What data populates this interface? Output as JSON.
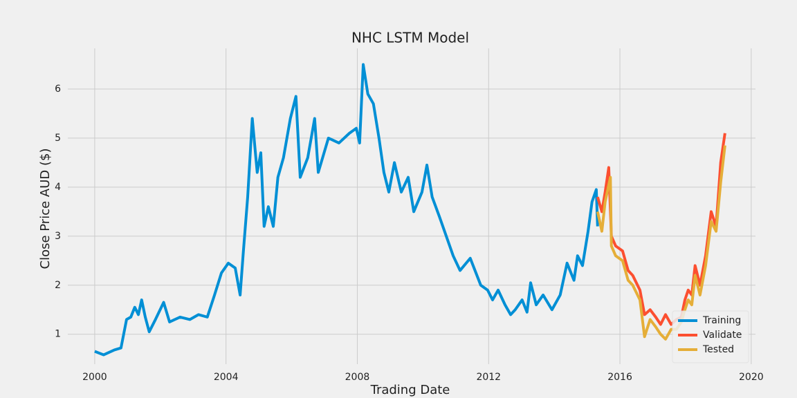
{
  "chart_data": {
    "type": "line",
    "title": "NHC LSTM Model",
    "x_label": "Trading Date",
    "y_label": "Close Price AUD ($)",
    "xlim": [
      1999.18,
      2020.13
    ],
    "ylim": [
      0.39,
      6.83
    ],
    "xticks": [
      2000,
      2004,
      2008,
      2012,
      2016,
      2020
    ],
    "yticks": [
      1,
      2,
      3,
      4,
      5,
      6
    ],
    "grid": true,
    "legend_position": "lower right",
    "series": [
      {
        "name": "Training",
        "color": "#008fd5",
        "x": [
          2000.0,
          2000.27,
          2000.6,
          2000.8,
          2000.97,
          2001.1,
          2001.22,
          2001.33,
          2001.43,
          2001.54,
          2001.66,
          2001.85,
          2002.1,
          2002.28,
          2002.6,
          2002.9,
          2003.16,
          2003.43,
          2003.65,
          2003.86,
          2004.07,
          2004.28,
          2004.43,
          2004.53,
          2004.66,
          2004.8,
          2004.95,
          2005.06,
          2005.16,
          2005.29,
          2005.44,
          2005.58,
          2005.75,
          2005.96,
          2006.13,
          2006.26,
          2006.49,
          2006.7,
          2006.81,
          2007.12,
          2007.44,
          2007.76,
          2007.97,
          2008.07,
          2008.18,
          2008.32,
          2008.49,
          2008.66,
          2008.81,
          2008.96,
          2009.13,
          2009.34,
          2009.55,
          2009.72,
          2009.97,
          2010.12,
          2010.28,
          2010.5,
          2010.71,
          2010.92,
          2011.13,
          2011.44,
          2011.76,
          2011.97,
          2012.12,
          2012.29,
          2012.5,
          2012.67,
          2012.81,
          2013.02,
          2013.17,
          2013.28,
          2013.45,
          2013.66,
          2013.93,
          2014.18,
          2014.39,
          2014.6,
          2014.71,
          2014.86,
          2015.03,
          2015.15,
          2015.28,
          2015.32
        ],
        "values": [
          0.65,
          0.58,
          0.68,
          0.72,
          1.3,
          1.35,
          1.55,
          1.4,
          1.7,
          1.35,
          1.05,
          1.3,
          1.65,
          1.25,
          1.35,
          1.3,
          1.4,
          1.35,
          1.8,
          2.25,
          2.45,
          2.35,
          1.8,
          2.7,
          3.8,
          5.4,
          4.3,
          4.7,
          3.2,
          3.6,
          3.2,
          4.2,
          4.6,
          5.4,
          5.85,
          4.2,
          4.6,
          5.4,
          4.3,
          5.0,
          4.9,
          5.1,
          5.2,
          4.9,
          6.5,
          5.9,
          5.7,
          5.0,
          4.3,
          3.9,
          4.5,
          3.9,
          4.2,
          3.5,
          3.9,
          4.45,
          3.8,
          3.4,
          3.0,
          2.6,
          2.3,
          2.55,
          2.0,
          1.9,
          1.7,
          1.9,
          1.6,
          1.4,
          1.5,
          1.7,
          1.45,
          2.05,
          1.6,
          1.8,
          1.5,
          1.8,
          2.45,
          2.1,
          2.6,
          2.4,
          3.1,
          3.7,
          3.95,
          3.2
        ]
      },
      {
        "name": "Validate",
        "color": "#fc4f30",
        "x": [
          2015.32,
          2015.45,
          2015.55,
          2015.66,
          2015.74,
          2015.87,
          2016.08,
          2016.25,
          2016.39,
          2016.61,
          2016.75,
          2016.92,
          2017.09,
          2017.24,
          2017.39,
          2017.56,
          2017.72,
          2017.87,
          2017.98,
          2018.08,
          2018.19,
          2018.29,
          2018.44,
          2018.61,
          2018.78,
          2018.93,
          2019.07,
          2019.2
        ],
        "values": [
          3.8,
          3.5,
          3.9,
          4.4,
          3.0,
          2.8,
          2.7,
          2.3,
          2.2,
          1.9,
          1.4,
          1.5,
          1.35,
          1.2,
          1.4,
          1.2,
          1.3,
          1.35,
          1.7,
          1.9,
          1.8,
          2.4,
          2.0,
          2.6,
          3.5,
          3.2,
          4.5,
          5.1
        ]
      },
      {
        "name": "Tested",
        "color": "#e5ae38",
        "x": [
          2015.32,
          2015.45,
          2015.55,
          2015.71,
          2015.74,
          2015.87,
          2016.08,
          2016.25,
          2016.39,
          2016.61,
          2016.75,
          2016.92,
          2017.09,
          2017.24,
          2017.39,
          2017.56,
          2017.72,
          2017.87,
          2017.98,
          2018.08,
          2018.19,
          2018.29,
          2018.44,
          2018.61,
          2018.78,
          2018.93,
          2019.07,
          2019.2
        ],
        "values": [
          3.5,
          3.1,
          3.7,
          4.2,
          2.8,
          2.6,
          2.5,
          2.1,
          2.0,
          1.7,
          0.95,
          1.3,
          1.15,
          1.0,
          0.9,
          1.1,
          1.1,
          1.25,
          1.5,
          1.7,
          1.6,
          2.2,
          1.8,
          2.4,
          3.3,
          3.1,
          4.1,
          4.85
        ]
      }
    ]
  }
}
